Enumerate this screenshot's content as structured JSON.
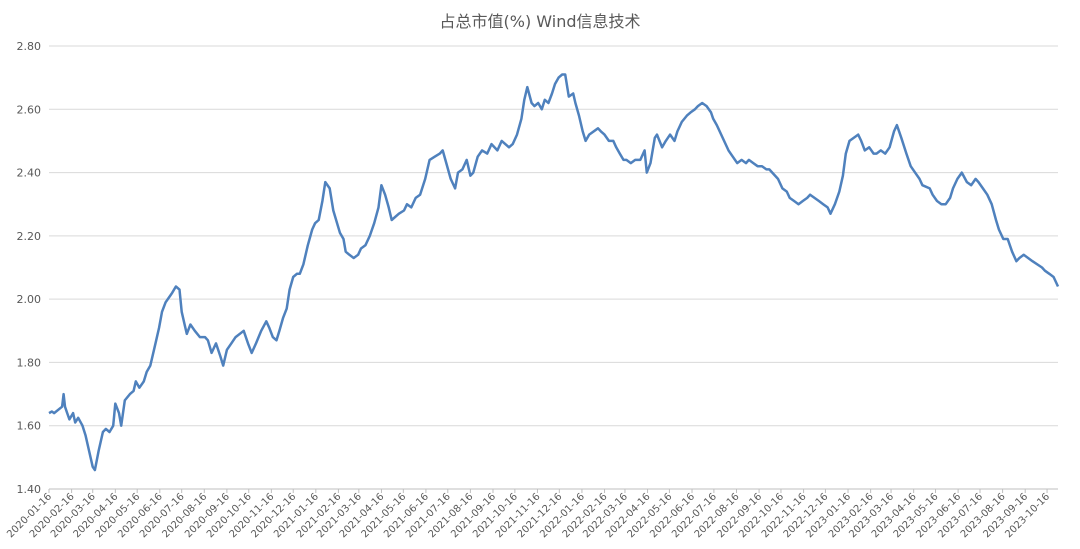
{
  "chart_data": {
    "type": "line",
    "title": "占总市值(%) Wind信息技术",
    "xlabel": "",
    "ylabel": "",
    "ylim": [
      1.4,
      2.8
    ],
    "y_ticks": [
      "1.40",
      "1.60",
      "1.80",
      "2.00",
      "2.20",
      "2.40",
      "2.60",
      "2.80"
    ],
    "x_range": [
      "2020-01-16",
      "2023-10-31"
    ],
    "x_ticks": [
      "2020-01-16",
      "2020-02-16",
      "2020-03-16",
      "2020-04-16",
      "2020-05-16",
      "2020-06-16",
      "2020-07-16",
      "2020-08-16",
      "2020-09-16",
      "2020-10-16",
      "2020-11-16",
      "2020-12-16",
      "2021-01-16",
      "2021-02-16",
      "2021-03-16",
      "2021-04-16",
      "2021-05-16",
      "2021-06-16",
      "2021-07-16",
      "2021-08-16",
      "2021-09-16",
      "2021-10-16",
      "2021-11-16",
      "2021-12-16",
      "2022-01-16",
      "2022-02-16",
      "2022-03-16",
      "2022-04-16",
      "2022-05-16",
      "2022-06-16",
      "2022-07-16",
      "2022-08-16",
      "2022-09-16",
      "2022-10-16",
      "2022-11-16",
      "2022-12-16",
      "2023-01-16",
      "2023-02-16",
      "2023-03-16",
      "2023-04-16",
      "2023-05-16",
      "2023-06-16",
      "2023-07-16",
      "2023-08-16",
      "2023-09-16",
      "2023-10-16"
    ],
    "grid": "horizontal",
    "legend": "none",
    "line_color": "#4F81BD",
    "series": [
      {
        "points": [
          [
            "2020-01-16",
            1.64
          ],
          [
            "2020-01-20",
            1.645
          ],
          [
            "2020-01-23",
            1.64
          ],
          [
            "2020-02-03",
            1.66
          ],
          [
            "2020-02-05",
            1.7
          ],
          [
            "2020-02-07",
            1.66
          ],
          [
            "2020-02-10",
            1.64
          ],
          [
            "2020-02-13",
            1.62
          ],
          [
            "2020-02-18",
            1.64
          ],
          [
            "2020-02-21",
            1.61
          ],
          [
            "2020-02-25",
            1.625
          ],
          [
            "2020-03-02",
            1.6
          ],
          [
            "2020-03-06",
            1.57
          ],
          [
            "2020-03-11",
            1.52
          ],
          [
            "2020-03-16",
            1.47
          ],
          [
            "2020-03-19",
            1.46
          ],
          [
            "2020-03-24",
            1.52
          ],
          [
            "2020-03-30",
            1.58
          ],
          [
            "2020-04-03",
            1.59
          ],
          [
            "2020-04-08",
            1.58
          ],
          [
            "2020-04-13",
            1.6
          ],
          [
            "2020-04-16",
            1.67
          ],
          [
            "2020-04-21",
            1.64
          ],
          [
            "2020-04-24",
            1.6
          ],
          [
            "2020-04-29",
            1.68
          ],
          [
            "2020-05-06",
            1.7
          ],
          [
            "2020-05-11",
            1.71
          ],
          [
            "2020-05-14",
            1.74
          ],
          [
            "2020-05-19",
            1.72
          ],
          [
            "2020-05-25",
            1.74
          ],
          [
            "2020-05-29",
            1.77
          ],
          [
            "2020-06-03",
            1.79
          ],
          [
            "2020-06-08",
            1.84
          ],
          [
            "2020-06-11",
            1.87
          ],
          [
            "2020-06-15",
            1.91
          ],
          [
            "2020-06-19",
            1.96
          ],
          [
            "2020-06-24",
            1.99
          ],
          [
            "2020-06-30",
            2.01
          ],
          [
            "2020-07-03",
            2.02
          ],
          [
            "2020-07-08",
            2.04
          ],
          [
            "2020-07-13",
            2.03
          ],
          [
            "2020-07-16",
            1.96
          ],
          [
            "2020-07-20",
            1.92
          ],
          [
            "2020-07-23",
            1.89
          ],
          [
            "2020-07-28",
            1.92
          ],
          [
            "2020-08-03",
            1.9
          ],
          [
            "2020-08-10",
            1.88
          ],
          [
            "2020-08-17",
            1.88
          ],
          [
            "2020-08-21",
            1.87
          ],
          [
            "2020-08-26",
            1.83
          ],
          [
            "2020-09-01",
            1.86
          ],
          [
            "2020-09-07",
            1.82
          ],
          [
            "2020-09-11",
            1.79
          ],
          [
            "2020-09-16",
            1.84
          ],
          [
            "2020-09-22",
            1.86
          ],
          [
            "2020-09-28",
            1.88
          ],
          [
            "2020-10-09",
            1.9
          ],
          [
            "2020-10-15",
            1.86
          ],
          [
            "2020-10-20",
            1.83
          ],
          [
            "2020-10-26",
            1.86
          ],
          [
            "2020-11-02",
            1.9
          ],
          [
            "2020-11-09",
            1.93
          ],
          [
            "2020-11-13",
            1.91
          ],
          [
            "2020-11-18",
            1.88
          ],
          [
            "2020-11-23",
            1.87
          ],
          [
            "2020-11-27",
            1.9
          ],
          [
            "2020-12-02",
            1.94
          ],
          [
            "2020-12-07",
            1.97
          ],
          [
            "2020-12-11",
            2.03
          ],
          [
            "2020-12-16",
            2.07
          ],
          [
            "2020-12-21",
            2.08
          ],
          [
            "2020-12-25",
            2.08
          ],
          [
            "2020-12-30",
            2.11
          ],
          [
            "2021-01-05",
            2.17
          ],
          [
            "2021-01-11",
            2.22
          ],
          [
            "2021-01-15",
            2.24
          ],
          [
            "2021-01-20",
            2.25
          ],
          [
            "2021-01-25",
            2.31
          ],
          [
            "2021-01-29",
            2.37
          ],
          [
            "2021-02-04",
            2.35
          ],
          [
            "2021-02-09",
            2.28
          ],
          [
            "2021-02-18",
            2.21
          ],
          [
            "2021-02-23",
            2.19
          ],
          [
            "2021-02-26",
            2.15
          ],
          [
            "2021-03-03",
            2.14
          ],
          [
            "2021-03-09",
            2.13
          ],
          [
            "2021-03-15",
            2.14
          ],
          [
            "2021-03-19",
            2.16
          ],
          [
            "2021-03-25",
            2.17
          ],
          [
            "2021-03-31",
            2.2
          ],
          [
            "2021-04-06",
            2.24
          ],
          [
            "2021-04-12",
            2.29
          ],
          [
            "2021-04-16",
            2.36
          ],
          [
            "2021-04-21",
            2.33
          ],
          [
            "2021-04-26",
            2.29
          ],
          [
            "2021-04-30",
            2.25
          ],
          [
            "2021-05-10",
            2.27
          ],
          [
            "2021-05-17",
            2.28
          ],
          [
            "2021-05-21",
            2.3
          ],
          [
            "2021-05-27",
            2.29
          ],
          [
            "2021-06-02",
            2.32
          ],
          [
            "2021-06-08",
            2.33
          ],
          [
            "2021-06-15",
            2.38
          ],
          [
            "2021-06-21",
            2.44
          ],
          [
            "2021-06-28",
            2.45
          ],
          [
            "2021-07-05",
            2.46
          ],
          [
            "2021-07-09",
            2.47
          ],
          [
            "2021-07-14",
            2.43
          ],
          [
            "2021-07-20",
            2.38
          ],
          [
            "2021-07-26",
            2.35
          ],
          [
            "2021-07-30",
            2.4
          ],
          [
            "2021-08-05",
            2.41
          ],
          [
            "2021-08-11",
            2.44
          ],
          [
            "2021-08-16",
            2.39
          ],
          [
            "2021-08-20",
            2.4
          ],
          [
            "2021-08-26",
            2.45
          ],
          [
            "2021-09-01",
            2.47
          ],
          [
            "2021-09-08",
            2.46
          ],
          [
            "2021-09-14",
            2.49
          ],
          [
            "2021-09-22",
            2.47
          ],
          [
            "2021-09-28",
            2.5
          ],
          [
            "2021-10-08",
            2.48
          ],
          [
            "2021-10-13",
            2.49
          ],
          [
            "2021-10-19",
            2.52
          ],
          [
            "2021-10-25",
            2.57
          ],
          [
            "2021-10-29",
            2.63
          ],
          [
            "2021-11-02",
            2.67
          ],
          [
            "2021-11-08",
            2.62
          ],
          [
            "2021-11-12",
            2.61
          ],
          [
            "2021-11-17",
            2.62
          ],
          [
            "2021-11-22",
            2.6
          ],
          [
            "2021-11-26",
            2.63
          ],
          [
            "2021-12-01",
            2.62
          ],
          [
            "2021-12-06",
            2.65
          ],
          [
            "2021-12-10",
            2.68
          ],
          [
            "2021-12-15",
            2.7
          ],
          [
            "2021-12-20",
            2.71
          ],
          [
            "2021-12-24",
            2.71
          ],
          [
            "2021-12-29",
            2.64
          ],
          [
            "2022-01-04",
            2.65
          ],
          [
            "2022-01-07",
            2.62
          ],
          [
            "2022-01-12",
            2.58
          ],
          [
            "2022-01-17",
            2.53
          ],
          [
            "2022-01-21",
            2.5
          ],
          [
            "2022-01-26",
            2.52
          ],
          [
            "2022-02-07",
            2.54
          ],
          [
            "2022-02-11",
            2.53
          ],
          [
            "2022-02-16",
            2.52
          ],
          [
            "2022-02-22",
            2.5
          ],
          [
            "2022-02-28",
            2.5
          ],
          [
            "2022-03-04",
            2.48
          ],
          [
            "2022-03-09",
            2.46
          ],
          [
            "2022-03-14",
            2.44
          ],
          [
            "2022-03-18",
            2.44
          ],
          [
            "2022-03-24",
            2.43
          ],
          [
            "2022-03-30",
            2.44
          ],
          [
            "2022-04-06",
            2.44
          ],
          [
            "2022-04-12",
            2.47
          ],
          [
            "2022-04-15",
            2.4
          ],
          [
            "2022-04-20",
            2.43
          ],
          [
            "2022-04-26",
            2.51
          ],
          [
            "2022-04-29",
            2.52
          ],
          [
            "2022-05-06",
            2.48
          ],
          [
            "2022-05-11",
            2.5
          ],
          [
            "2022-05-17",
            2.52
          ],
          [
            "2022-05-23",
            2.5
          ],
          [
            "2022-05-27",
            2.53
          ],
          [
            "2022-06-02",
            2.56
          ],
          [
            "2022-06-09",
            2.58
          ],
          [
            "2022-06-14",
            2.59
          ],
          [
            "2022-06-20",
            2.6
          ],
          [
            "2022-06-24",
            2.61
          ],
          [
            "2022-06-30",
            2.62
          ],
          [
            "2022-07-06",
            2.61
          ],
          [
            "2022-07-12",
            2.59
          ],
          [
            "2022-07-15",
            2.57
          ],
          [
            "2022-07-20",
            2.55
          ],
          [
            "2022-07-26",
            2.52
          ],
          [
            "2022-08-01",
            2.49
          ],
          [
            "2022-08-05",
            2.47
          ],
          [
            "2022-08-11",
            2.45
          ],
          [
            "2022-08-17",
            2.43
          ],
          [
            "2022-08-23",
            2.44
          ],
          [
            "2022-08-29",
            2.43
          ],
          [
            "2022-09-02",
            2.44
          ],
          [
            "2022-09-08",
            2.43
          ],
          [
            "2022-09-14",
            2.42
          ],
          [
            "2022-09-20",
            2.42
          ],
          [
            "2022-09-26",
            2.41
          ],
          [
            "2022-09-30",
            2.41
          ],
          [
            "2022-10-12",
            2.38
          ],
          [
            "2022-10-18",
            2.35
          ],
          [
            "2022-10-24",
            2.34
          ],
          [
            "2022-10-28",
            2.32
          ],
          [
            "2022-11-03",
            2.31
          ],
          [
            "2022-11-09",
            2.3
          ],
          [
            "2022-11-15",
            2.31
          ],
          [
            "2022-11-21",
            2.32
          ],
          [
            "2022-11-25",
            2.33
          ],
          [
            "2022-12-01",
            2.32
          ],
          [
            "2022-12-07",
            2.31
          ],
          [
            "2022-12-13",
            2.3
          ],
          [
            "2022-12-19",
            2.29
          ],
          [
            "2022-12-23",
            2.27
          ],
          [
            "2022-12-29",
            2.3
          ],
          [
            "2023-01-04",
            2.34
          ],
          [
            "2023-01-09",
            2.39
          ],
          [
            "2023-01-13",
            2.46
          ],
          [
            "2023-01-18",
            2.5
          ],
          [
            "2023-01-30",
            2.52
          ],
          [
            "2023-02-03",
            2.5
          ],
          [
            "2023-02-08",
            2.47
          ],
          [
            "2023-02-14",
            2.48
          ],
          [
            "2023-02-20",
            2.46
          ],
          [
            "2023-02-24",
            2.46
          ],
          [
            "2023-03-02",
            2.47
          ],
          [
            "2023-03-08",
            2.46
          ],
          [
            "2023-03-14",
            2.48
          ],
          [
            "2023-03-20",
            2.53
          ],
          [
            "2023-03-24",
            2.55
          ],
          [
            "2023-03-30",
            2.51
          ],
          [
            "2023-04-06",
            2.46
          ],
          [
            "2023-04-12",
            2.42
          ],
          [
            "2023-04-18",
            2.4
          ],
          [
            "2023-04-24",
            2.38
          ],
          [
            "2023-04-28",
            2.36
          ],
          [
            "2023-05-08",
            2.35
          ],
          [
            "2023-05-12",
            2.33
          ],
          [
            "2023-05-18",
            2.31
          ],
          [
            "2023-05-24",
            2.3
          ],
          [
            "2023-05-30",
            2.3
          ],
          [
            "2023-06-05",
            2.32
          ],
          [
            "2023-06-09",
            2.35
          ],
          [
            "2023-06-15",
            2.38
          ],
          [
            "2023-06-21",
            2.4
          ],
          [
            "2023-06-28",
            2.37
          ],
          [
            "2023-07-04",
            2.36
          ],
          [
            "2023-07-10",
            2.38
          ],
          [
            "2023-07-14",
            2.37
          ],
          [
            "2023-07-20",
            2.35
          ],
          [
            "2023-07-26",
            2.33
          ],
          [
            "2023-08-01",
            2.3
          ],
          [
            "2023-08-07",
            2.25
          ],
          [
            "2023-08-11",
            2.22
          ],
          [
            "2023-08-17",
            2.19
          ],
          [
            "2023-08-23",
            2.19
          ],
          [
            "2023-08-29",
            2.15
          ],
          [
            "2023-09-04",
            2.12
          ],
          [
            "2023-09-08",
            2.13
          ],
          [
            "2023-09-14",
            2.14
          ],
          [
            "2023-09-20",
            2.13
          ],
          [
            "2023-09-26",
            2.12
          ],
          [
            "2023-10-09",
            2.1
          ],
          [
            "2023-10-13",
            2.09
          ],
          [
            "2023-10-19",
            2.08
          ],
          [
            "2023-10-25",
            2.07
          ],
          [
            "2023-10-31",
            2.04
          ]
        ]
      }
    ]
  }
}
